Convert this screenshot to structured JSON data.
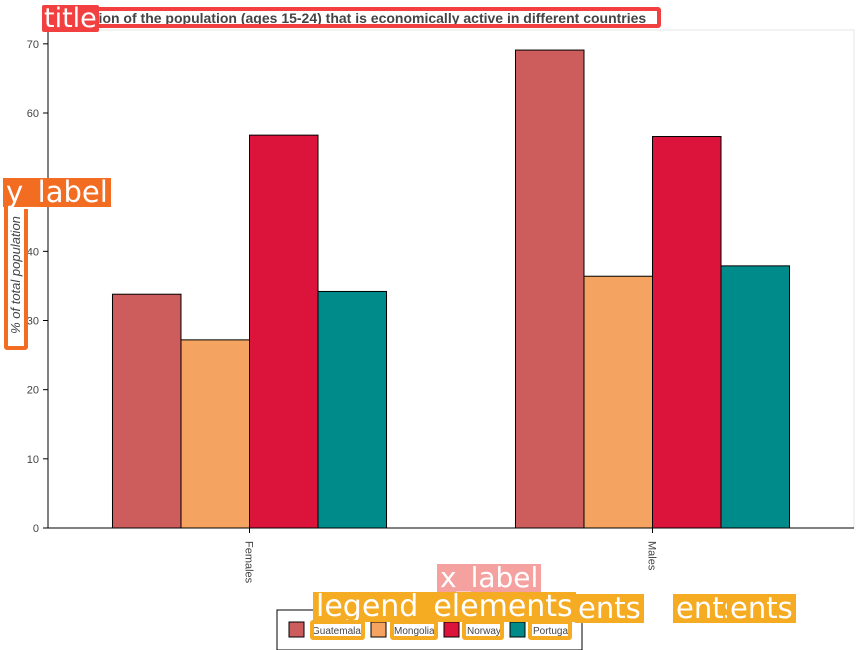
{
  "chart_data": {
    "type": "bar",
    "title": "Proportion of the population (ages 15-24) that is economically active in different countries",
    "ylabel": "% of total population",
    "xlabel": "",
    "categories": [
      "Females",
      "Males"
    ],
    "series": [
      {
        "name": "Guatemala",
        "color": "#cd5c5c",
        "values": [
          33.8,
          69.1
        ]
      },
      {
        "name": "Mongolia",
        "color": "#f4a460",
        "values": [
          27.2,
          36.4
        ]
      },
      {
        "name": "Norway",
        "color": "#dc143c",
        "values": [
          56.8,
          56.6
        ]
      },
      {
        "name": "Portugal",
        "color": "#008b8b",
        "values": [
          34.2,
          37.9
        ]
      }
    ],
    "ylim": [
      0,
      72
    ],
    "yticks": [
      0,
      10,
      20,
      30,
      40,
      50,
      60,
      70
    ],
    "grid": false,
    "legend_position": "bottom-center"
  },
  "overlay_labels": {
    "title": "title",
    "y_label": "y_label",
    "x_label": "x_label",
    "legend_elements": "legend_elements",
    "legend_fragment_1": "ents",
    "legend_fragment_2": "ents",
    "legend_fragment_3": "ents"
  }
}
